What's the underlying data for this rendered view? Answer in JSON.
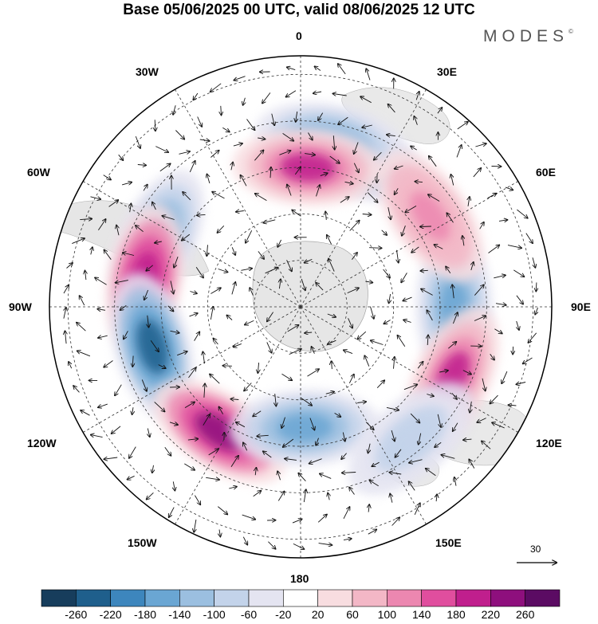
{
  "title": "Base 05/06/2025 00 UTC, valid 08/06/2025 12 UTC",
  "brand": "MODES",
  "brand_mark": "©",
  "longitude_labels": {
    "lon_0": "0",
    "lon_30e": "30E",
    "lon_60e": "60E",
    "lon_90e": "90E",
    "lon_120e": "120E",
    "lon_150e": "150E",
    "lon_180": "180",
    "lon_150w": "150W",
    "lon_120w": "120W",
    "lon_90w": "90W",
    "lon_60w": "60W",
    "lon_30w": "30W"
  },
  "vector_reference": {
    "label": "30"
  },
  "colorbar": {
    "ticks": [
      "-260",
      "-220",
      "-180",
      "-140",
      "-100",
      "-60",
      "-20",
      "20",
      "60",
      "100",
      "140",
      "180",
      "220",
      "260"
    ],
    "colors": [
      "#173d5c",
      "#1f5f8c",
      "#3d86bd",
      "#6aa6d3",
      "#9bbfe0",
      "#c3d3ea",
      "#e4e4f1",
      "#ffffff",
      "#f8dde0",
      "#f3b7c6",
      "#ec87b0",
      "#e04e9e",
      "#c01f8d",
      "#8e0f7d",
      "#5b0b63"
    ]
  },
  "anomaly_blobs": [
    {
      "lat_colat": 34,
      "lon": -65,
      "value": -180
    },
    {
      "lat_colat": 34,
      "lon": 20,
      "value": -140
    },
    {
      "lat_colat": 36,
      "lon": 10,
      "value": -140
    },
    {
      "lat_colat": 30,
      "lon": 3,
      "value": 180
    },
    {
      "lat_colat": 33,
      "lon": 90,
      "value": -180
    },
    {
      "lat_colat": 34,
      "lon": -80,
      "value": 200
    },
    {
      "lat_colat": 33,
      "lon": -105,
      "value": -240
    },
    {
      "lat_colat": 32,
      "lon": -147,
      "value": 220
    },
    {
      "lat_colat": 26,
      "lon": 178,
      "value": -160
    },
    {
      "lat_colat": 36,
      "lon": 115,
      "value": 180
    },
    {
      "lat_colat": 37,
      "lon": 140,
      "value": -100
    },
    {
      "lat_colat": 34,
      "lon": 55,
      "value": 120
    }
  ]
}
